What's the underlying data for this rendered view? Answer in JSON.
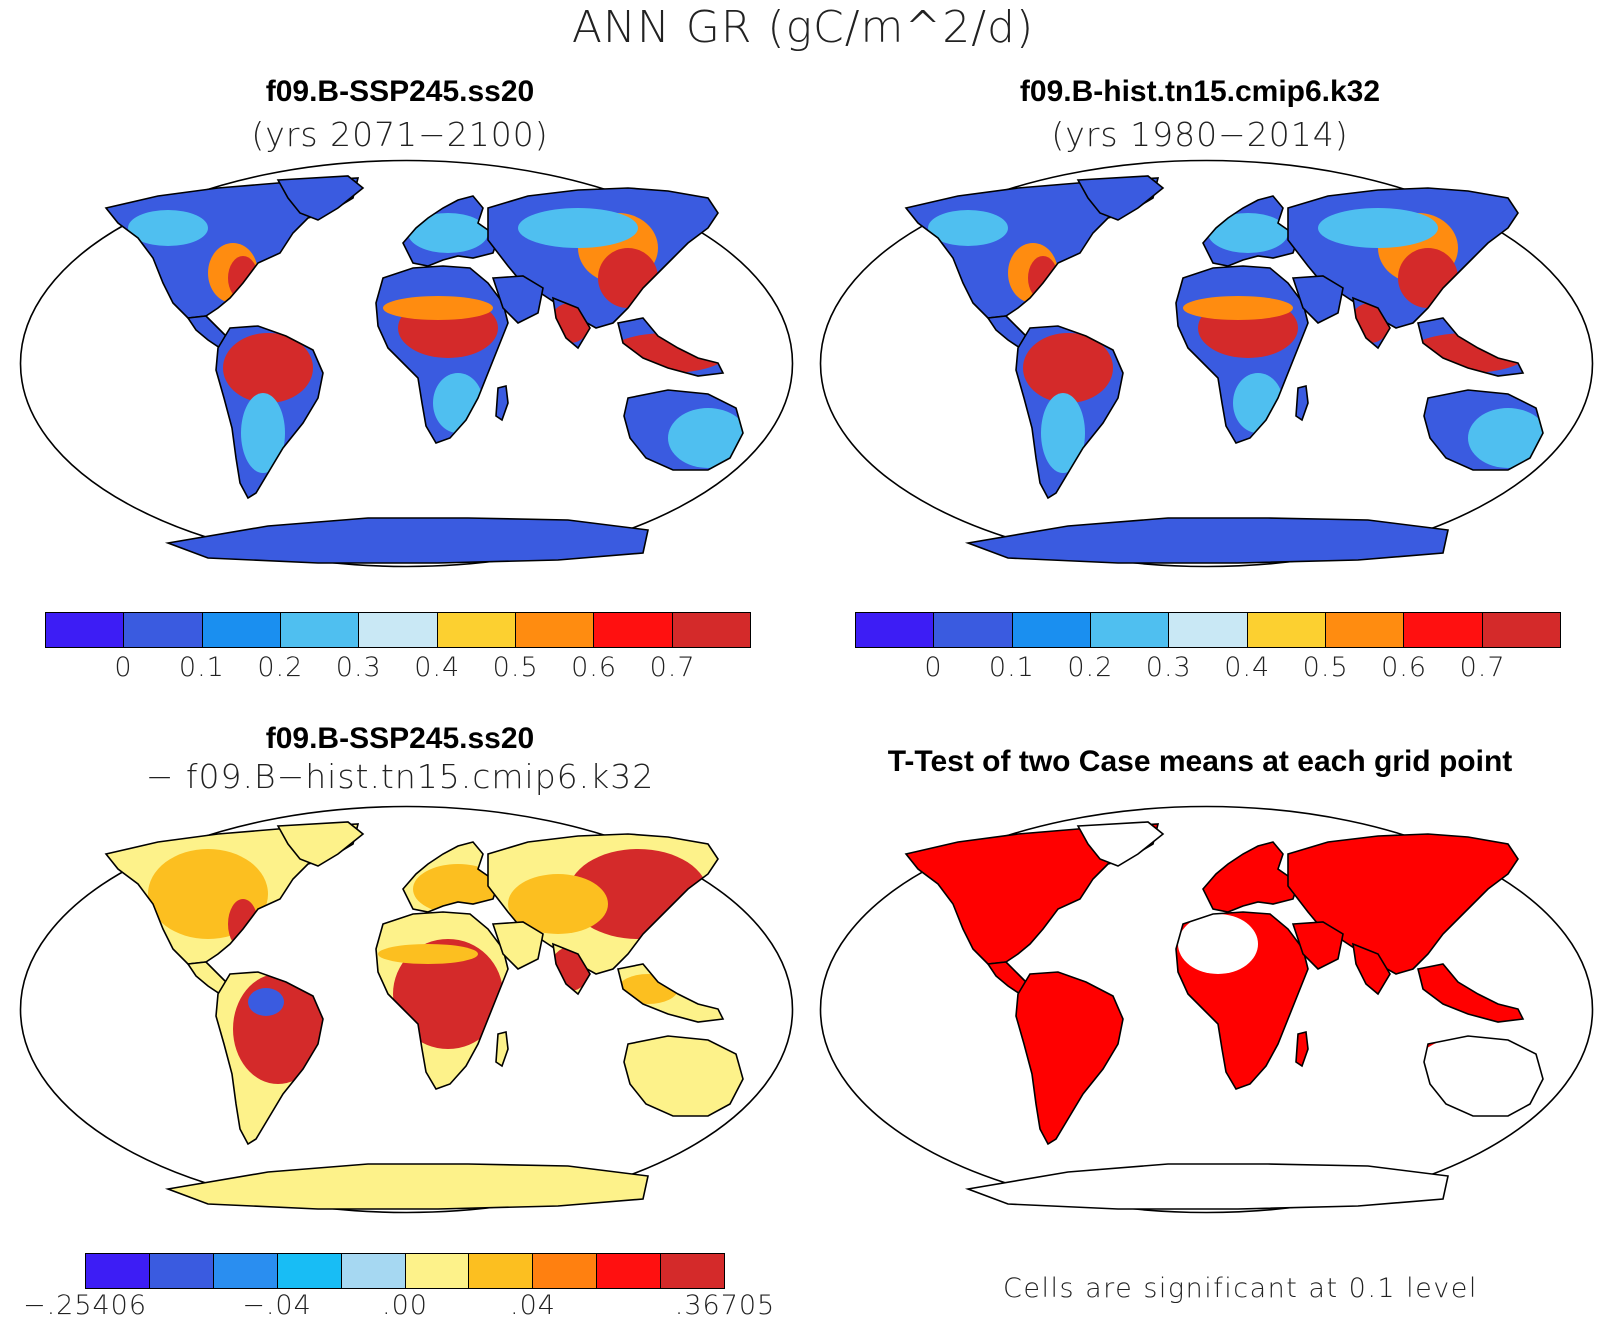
{
  "title": "ANN GR (gC/m^2/d)",
  "panels": {
    "top_left": {
      "title": "f09.B-SSP245.ss20",
      "subtitle": "(yrs 2071−2100)",
      "colorbar": {
        "colors": [
          "#3d1df5",
          "#3a5be0",
          "#1a8ff0",
          "#4fbff0",
          "#c9e8f5",
          "#fcd030",
          "#ff8c10",
          "#ff1010",
          "#d42a2a"
        ],
        "labels": [
          "0",
          "0.1",
          "0.2",
          "0.3",
          "0.4",
          "0.5",
          "0.6",
          "0.7"
        ]
      }
    },
    "top_right": {
      "title": "f09.B-hist.tn15.cmip6.k32",
      "subtitle": "(yrs 1980−2014)",
      "colorbar": {
        "colors": [
          "#3d1df5",
          "#3a5be0",
          "#1a8ff0",
          "#4fbff0",
          "#c9e8f5",
          "#fcd030",
          "#ff8c10",
          "#ff1010",
          "#d42a2a"
        ],
        "labels": [
          "0",
          "0.1",
          "0.2",
          "0.3",
          "0.4",
          "0.5",
          "0.6",
          "0.7"
        ]
      }
    },
    "bottom_left": {
      "title": "f09.B-SSP245.ss20",
      "subtitle": "− f09.B−hist.tn15.cmip6.k32",
      "colorbar": {
        "colors": [
          "#3d1df5",
          "#3a5be0",
          "#2a8ef0",
          "#18bdf5",
          "#a6d8f2",
          "#fdf28a",
          "#fcbf20",
          "#ff8010",
          "#ff1010",
          "#d42a2a"
        ],
        "labels": [
          "−.25406",
          "−.04",
          ".00",
          ".04",
          ".36705"
        ]
      }
    },
    "bottom_right": {
      "title": "T-Test of two Case means at each grid point",
      "note": "Cells are significant at 0.1 level"
    }
  },
  "map_colors": {
    "ocean": "#ffffff",
    "coast": "#000000",
    "abs_low": "#3a5be0",
    "abs_mid": "#4fbff0",
    "abs_high": "#d42a2a",
    "abs_warm": "#ff8c10",
    "diff_base": "#fdf28a",
    "diff_high": "#d42a2a",
    "diff_mid": "#fcbf20",
    "diff_neg": "#3a5be0",
    "signif": "#ff0000"
  }
}
